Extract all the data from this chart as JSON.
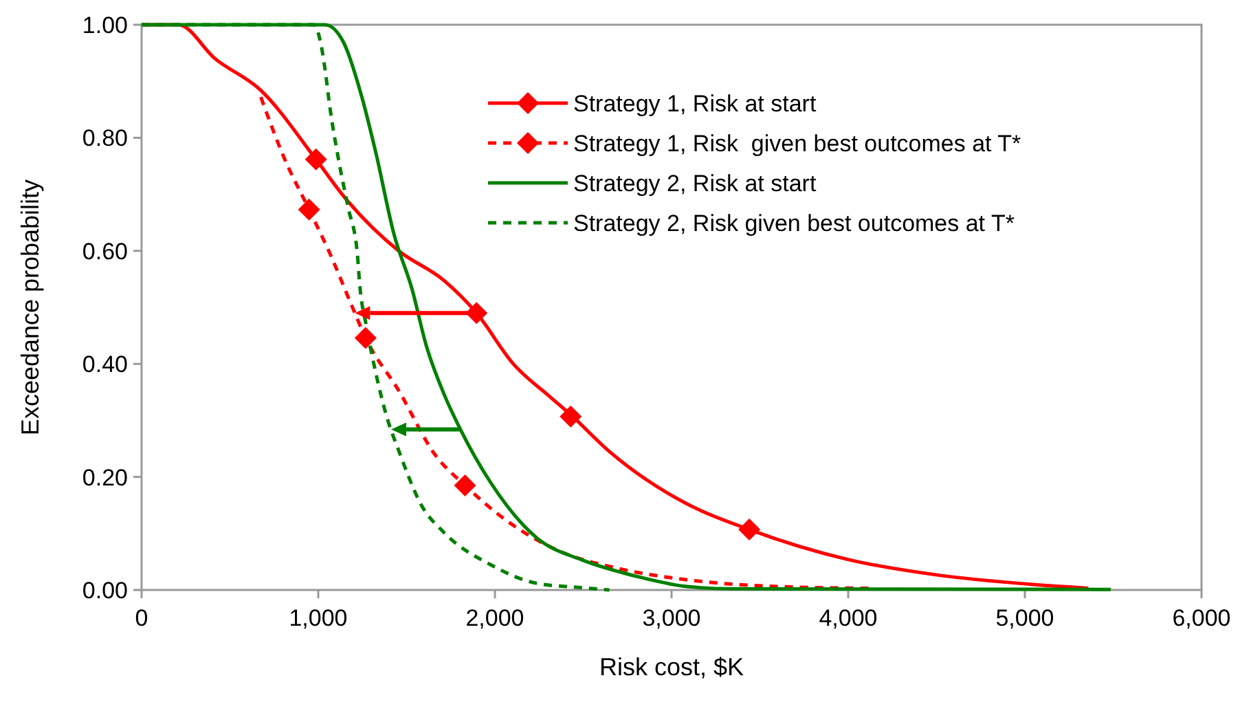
{
  "chart_data": {
    "type": "line",
    "xlabel": "Risk cost, $K",
    "ylabel": "Exceedance probability",
    "xlim": [
      0,
      6000
    ],
    "ylim": [
      0,
      1
    ],
    "xticks": [
      0,
      {
        "value": 1000,
        "label": "1,000"
      },
      {
        "value": 2000,
        "label": "2,000"
      },
      {
        "value": 3000,
        "label": "3,000"
      },
      {
        "value": 4000,
        "label": "4,000"
      },
      {
        "value": 5000,
        "label": "5,000"
      },
      {
        "value": 6000,
        "label": "6,000"
      }
    ],
    "yticks": [
      {
        "value": 0,
        "label": "0.00"
      },
      {
        "value": 0.2,
        "label": "0.20"
      },
      {
        "value": 0.4,
        "label": "0.40"
      },
      {
        "value": 0.6,
        "label": "0.60"
      },
      {
        "value": 0.8,
        "label": "0.80"
      },
      {
        "value": 1,
        "label": "1.00"
      }
    ],
    "grid": false,
    "legend": "top right",
    "series": [
      {
        "name": "Strategy 1, Risk at start",
        "color": "#ff0000",
        "line_style": "solid",
        "x": [
          0,
          208,
          416,
          675,
          987,
          1143,
          1455,
          1714,
          1896,
          2104,
          2311,
          2429,
          2648,
          3089,
          3440,
          3998,
          4516,
          5035,
          5359
        ],
        "values": [
          1,
          1,
          0.94,
          0.884,
          0.762,
          0.697,
          0.6,
          0.547,
          0.49,
          0.4,
          0.342,
          0.31,
          0.245,
          0.152,
          0.107,
          0.054,
          0.026,
          0.01,
          0.003
        ]
      },
      {
        "type": "scatter",
        "color": "#ff0000",
        "marker": "diamond",
        "x": [
          987,
          1896,
          2429,
          3440
        ],
        "values": [
          0.762,
          0.49,
          0.307,
          0.107
        ]
      },
      {
        "name": "Strategy 1, Risk  given best outcomes at T*",
        "color": "#ff0000",
        "line_style": "dashed",
        "x": [
          675,
          805,
          948,
          1065,
          1195,
          1268,
          1455,
          1662,
          1831,
          2052,
          2364,
          2700,
          3089,
          3608,
          4125
        ],
        "values": [
          0.872,
          0.766,
          0.673,
          0.596,
          0.499,
          0.446,
          0.353,
          0.239,
          0.185,
          0.126,
          0.069,
          0.038,
          0.018,
          0.006,
          0.003
        ]
      },
      {
        "type": "scatter",
        "color": "#ff0000",
        "marker": "diamond",
        "x": [
          948,
          1268,
          1831
        ],
        "values": [
          0.673,
          0.446,
          0.185
        ]
      },
      {
        "name": "Strategy 2, Risk at start",
        "color": "#008000",
        "line_style": "solid",
        "x": [
          0,
          1039,
          1143,
          1247,
          1325,
          1429,
          1532,
          1610,
          1714,
          1805,
          1974,
          2234,
          2494,
          2753,
          2830,
          3089,
          3346,
          5486
        ],
        "values": [
          1,
          1,
          0.969,
          0.872,
          0.775,
          0.629,
          0.531,
          0.434,
          0.345,
          0.284,
          0.191,
          0.093,
          0.053,
          0.028,
          0.022,
          0.006,
          0.002,
          0.001
        ]
      },
      {
        "name": "Strategy 2, Risk given best outcomes at T*",
        "color": "#008000",
        "line_style": "dashed",
        "x": [
          0,
          974,
          1013,
          1039,
          1065,
          1117,
          1169,
          1221,
          1234,
          1273,
          1325,
          1390,
          1455,
          1584,
          1714,
          1974,
          2234,
          2494,
          2648
        ],
        "values": [
          1,
          1,
          0.969,
          0.92,
          0.856,
          0.758,
          0.677,
          0.596,
          0.543,
          0.466,
          0.385,
          0.304,
          0.247,
          0.15,
          0.101,
          0.045,
          0.012,
          0.004,
          0
        ]
      }
    ]
  }
}
